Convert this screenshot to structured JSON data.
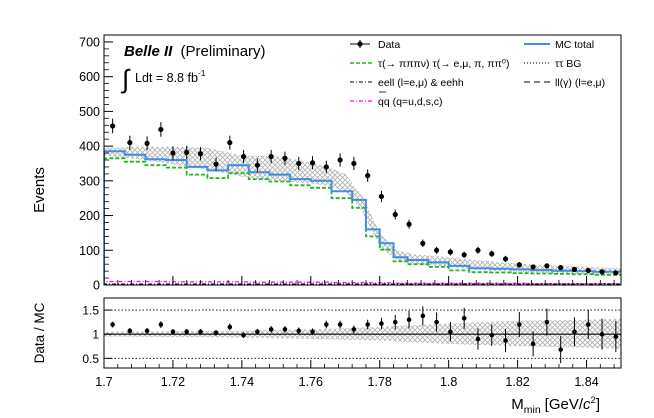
{
  "chart_data": [
    {
      "type": "histogram",
      "title_bold": "Belle II",
      "title_rest": "(Preliminary)",
      "lumi_text": "Ldt = 8.8 fb",
      "lumi_sup": "-1",
      "ylabel": "Events",
      "ylim": [
        0,
        720
      ],
      "yticks": [
        0,
        100,
        200,
        300,
        400,
        500,
        600,
        700
      ],
      "xlim": [
        1.7,
        1.85
      ],
      "legend": [
        {
          "key": "data",
          "label": "Data",
          "style": "marker",
          "color": "#000000"
        },
        {
          "key": "mc_total",
          "label": "MC total",
          "style": "solid",
          "color": "#3f8ee0"
        },
        {
          "key": "signal",
          "label": "τ(→ πππν) τ(→ e,μ, π, ππ⁰)",
          "style": "dashed",
          "color": "#23b523"
        },
        {
          "key": "tautau_bg",
          "label": "ττ BG",
          "style": "dotted",
          "color": "#000000"
        },
        {
          "key": "eell",
          "label": "eell (l=e,μ) & eehh",
          "style": "dashdot",
          "color": "#000000"
        },
        {
          "key": "llgamma",
          "label": "ll(γ) (l=e,μ)",
          "style": "longdash",
          "color": "#000000"
        },
        {
          "key": "qqbar",
          "label": "qq (q=u,d,s,c)",
          "style": "dashdot",
          "color": "#ff00ff"
        }
      ],
      "bin_edges": [
        1.7,
        1.706,
        1.712,
        1.718,
        1.724,
        1.73,
        1.736,
        1.742,
        1.748,
        1.754,
        1.76,
        1.766,
        1.772,
        1.776,
        1.78,
        1.784,
        1.788,
        1.794,
        1.8,
        1.806,
        1.812,
        1.818,
        1.824,
        1.83,
        1.836,
        1.842,
        1.85
      ],
      "mc_total": [
        385,
        375,
        362,
        360,
        340,
        330,
        345,
        325,
        318,
        305,
        300,
        270,
        245,
        160,
        120,
        80,
        72,
        65,
        55,
        48,
        47,
        45,
        43,
        41,
        40,
        38
      ],
      "signal": [
        365,
        355,
        345,
        338,
        318,
        308,
        322,
        305,
        298,
        287,
        280,
        250,
        222,
        140,
        102,
        68,
        60,
        52,
        42,
        37,
        36,
        34,
        33,
        32,
        31,
        29
      ],
      "qqbar": [
        10,
        10,
        10,
        9,
        9,
        9,
        9,
        8,
        8,
        8,
        8,
        7,
        7,
        6,
        6,
        5,
        5,
        5,
        5,
        5,
        5,
        5,
        4,
        4,
        4,
        4
      ],
      "eell": [
        3,
        3,
        3,
        3,
        3,
        3,
        3,
        3,
        3,
        3,
        3,
        3,
        3,
        3,
        3,
        3,
        3,
        3,
        3,
        3,
        3,
        3,
        3,
        3,
        3,
        3
      ],
      "band": [
        [
          1.7,
          395,
          372
        ],
        [
          1.71,
          398,
          362
        ],
        [
          1.72,
          398,
          348
        ],
        [
          1.73,
          395,
          332
        ],
        [
          1.74,
          372,
          312
        ],
        [
          1.75,
          372,
          300
        ],
        [
          1.76,
          352,
          292
        ],
        [
          1.765,
          340,
          285
        ],
        [
          1.77,
          320,
          270
        ],
        [
          1.775,
          255,
          210
        ],
        [
          1.78,
          150,
          112
        ],
        [
          1.785,
          100,
          70
        ],
        [
          1.79,
          88,
          62
        ],
        [
          1.8,
          80,
          52
        ],
        [
          1.81,
          70,
          42
        ],
        [
          1.82,
          62,
          38
        ],
        [
          1.83,
          56,
          34
        ],
        [
          1.84,
          52,
          31
        ],
        [
          1.85,
          48,
          29
        ]
      ],
      "data_points": [
        {
          "x": 1.7025,
          "y": 458,
          "e": 21
        },
        {
          "x": 1.7075,
          "y": 410,
          "e": 20
        },
        {
          "x": 1.7125,
          "y": 408,
          "e": 20
        },
        {
          "x": 1.7165,
          "y": 448,
          "e": 21
        },
        {
          "x": 1.72,
          "y": 380,
          "e": 19
        },
        {
          "x": 1.724,
          "y": 382,
          "e": 19
        },
        {
          "x": 1.728,
          "y": 378,
          "e": 19
        },
        {
          "x": 1.7325,
          "y": 348,
          "e": 19
        },
        {
          "x": 1.7365,
          "y": 410,
          "e": 20
        },
        {
          "x": 1.7405,
          "y": 370,
          "e": 19
        },
        {
          "x": 1.7445,
          "y": 345,
          "e": 19
        },
        {
          "x": 1.7485,
          "y": 370,
          "e": 19
        },
        {
          "x": 1.7525,
          "y": 365,
          "e": 19
        },
        {
          "x": 1.7565,
          "y": 350,
          "e": 19
        },
        {
          "x": 1.7605,
          "y": 352,
          "e": 19
        },
        {
          "x": 1.7645,
          "y": 340,
          "e": 18
        },
        {
          "x": 1.7685,
          "y": 360,
          "e": 19
        },
        {
          "x": 1.7725,
          "y": 350,
          "e": 19
        },
        {
          "x": 1.7765,
          "y": 315,
          "e": 18
        },
        {
          "x": 1.7805,
          "y": 255,
          "e": 16
        },
        {
          "x": 1.7845,
          "y": 203,
          "e": 14
        },
        {
          "x": 1.7885,
          "y": 175,
          "e": 13
        },
        {
          "x": 1.7925,
          "y": 120,
          "e": 11
        },
        {
          "x": 1.7965,
          "y": 100,
          "e": 10
        },
        {
          "x": 1.8005,
          "y": 95,
          "e": 10
        },
        {
          "x": 1.8045,
          "y": 87,
          "e": 9
        },
        {
          "x": 1.8085,
          "y": 100,
          "e": 10
        },
        {
          "x": 1.8125,
          "y": 90,
          "e": 9
        },
        {
          "x": 1.8165,
          "y": 75,
          "e": 9
        },
        {
          "x": 1.8205,
          "y": 58,
          "e": 8
        },
        {
          "x": 1.8245,
          "y": 52,
          "e": 7
        },
        {
          "x": 1.8285,
          "y": 55,
          "e": 7
        },
        {
          "x": 1.8325,
          "y": 50,
          "e": 7
        },
        {
          "x": 1.8365,
          "y": 45,
          "e": 7
        },
        {
          "x": 1.8405,
          "y": 42,
          "e": 6
        },
        {
          "x": 1.8445,
          "y": 38,
          "e": 6
        },
        {
          "x": 1.8485,
          "y": 35,
          "e": 6
        }
      ]
    },
    {
      "type": "scatter",
      "ylabel": "Data / MC",
      "xlabel_main": "M",
      "xlabel_sub": "min",
      "xlabel_unit_pre": "[GeV/",
      "xlabel_unit_c": "c",
      "xlabel_unit_sup": "2",
      "xlabel_unit_post": "]",
      "xlim": [
        1.7,
        1.85
      ],
      "ylim": [
        0.3,
        1.75
      ],
      "yticks": [
        "0.5",
        "1",
        "1.5"
      ],
      "ytick_values": [
        0.5,
        1,
        1.5
      ],
      "xticks": [
        "1.7",
        "1.72",
        "1.74",
        "1.76",
        "1.78",
        "1.8",
        "1.82",
        "1.84"
      ],
      "xtick_values": [
        1.7,
        1.72,
        1.74,
        1.76,
        1.78,
        1.8,
        1.82,
        1.84
      ],
      "reference_lines": [
        0.5,
        1,
        1.5
      ],
      "band": [
        [
          1.7,
          1.05,
          0.95
        ],
        [
          1.72,
          1.06,
          0.94
        ],
        [
          1.74,
          1.07,
          0.93
        ],
        [
          1.76,
          1.1,
          0.9
        ],
        [
          1.78,
          1.15,
          0.87
        ],
        [
          1.8,
          1.22,
          0.8
        ],
        [
          1.82,
          1.28,
          0.75
        ],
        [
          1.84,
          1.3,
          0.72
        ],
        [
          1.85,
          1.32,
          0.7
        ]
      ],
      "ratio_points": [
        {
          "x": 1.7025,
          "y": 1.2,
          "e": 0.06
        },
        {
          "x": 1.7075,
          "y": 1.07,
          "e": 0.06
        },
        {
          "x": 1.7125,
          "y": 1.07,
          "e": 0.06
        },
        {
          "x": 1.7165,
          "y": 1.2,
          "e": 0.07
        },
        {
          "x": 1.72,
          "y": 1.05,
          "e": 0.06
        },
        {
          "x": 1.724,
          "y": 1.05,
          "e": 0.06
        },
        {
          "x": 1.728,
          "y": 1.05,
          "e": 0.06
        },
        {
          "x": 1.7325,
          "y": 1.03,
          "e": 0.06
        },
        {
          "x": 1.7365,
          "y": 1.15,
          "e": 0.07
        },
        {
          "x": 1.7405,
          "y": 0.98,
          "e": 0.06
        },
        {
          "x": 1.7445,
          "y": 1.05,
          "e": 0.06
        },
        {
          "x": 1.7485,
          "y": 1.1,
          "e": 0.07
        },
        {
          "x": 1.7525,
          "y": 1.1,
          "e": 0.07
        },
        {
          "x": 1.7565,
          "y": 1.07,
          "e": 0.07
        },
        {
          "x": 1.7605,
          "y": 1.05,
          "e": 0.07
        },
        {
          "x": 1.7645,
          "y": 1.2,
          "e": 0.08
        },
        {
          "x": 1.7685,
          "y": 1.2,
          "e": 0.08
        },
        {
          "x": 1.7725,
          "y": 1.1,
          "e": 0.08
        },
        {
          "x": 1.7765,
          "y": 1.2,
          "e": 0.1
        },
        {
          "x": 1.7805,
          "y": 1.22,
          "e": 0.12
        },
        {
          "x": 1.7845,
          "y": 1.25,
          "e": 0.15
        },
        {
          "x": 1.7885,
          "y": 1.3,
          "e": 0.18
        },
        {
          "x": 1.7925,
          "y": 1.38,
          "e": 0.2
        },
        {
          "x": 1.7965,
          "y": 1.25,
          "e": 0.2
        },
        {
          "x": 1.8005,
          "y": 1.05,
          "e": 0.2
        },
        {
          "x": 1.8045,
          "y": 1.33,
          "e": 0.22
        },
        {
          "x": 1.8085,
          "y": 0.9,
          "e": 0.22
        },
        {
          "x": 1.8125,
          "y": 0.98,
          "e": 0.22
        },
        {
          "x": 1.8165,
          "y": 0.87,
          "e": 0.24
        },
        {
          "x": 1.8205,
          "y": 1.2,
          "e": 0.26
        },
        {
          "x": 1.8245,
          "y": 0.8,
          "e": 0.26
        },
        {
          "x": 1.8285,
          "y": 1.25,
          "e": 0.28
        },
        {
          "x": 1.8325,
          "y": 0.68,
          "e": 0.28
        },
        {
          "x": 1.8365,
          "y": 1.05,
          "e": 0.3
        },
        {
          "x": 1.8405,
          "y": 1.2,
          "e": 0.3
        },
        {
          "x": 1.8445,
          "y": 1.0,
          "e": 0.32
        },
        {
          "x": 1.8485,
          "y": 0.95,
          "e": 0.32
        }
      ]
    }
  ]
}
